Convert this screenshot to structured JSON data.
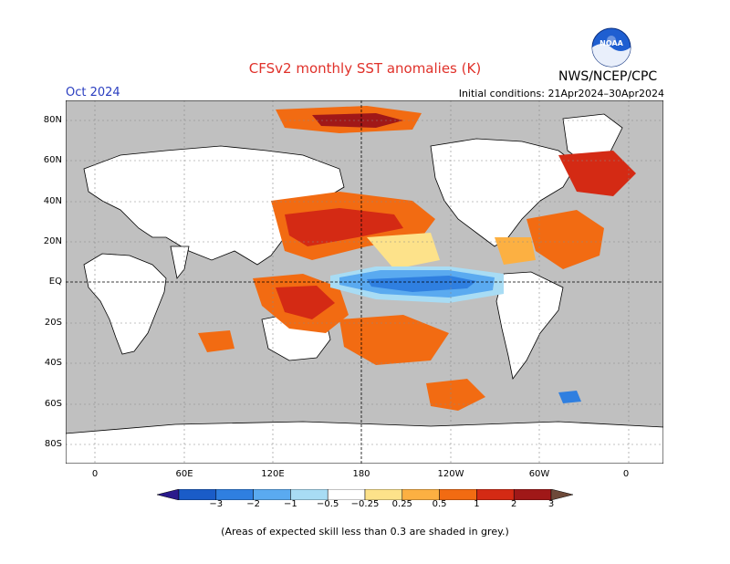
{
  "title": "CFSv2 monthly SST anomalies (K)",
  "agency": "NWS/NCEP/CPC",
  "logo_text": "NOAA",
  "month": "Oct 2024",
  "initial_conditions": "Initial conditions: 21Apr2024–30Apr2024",
  "lat_labels": [
    "80N",
    "60N",
    "40N",
    "20N",
    "EQ",
    "20S",
    "40S",
    "60S",
    "80S"
  ],
  "lon_labels": [
    "0",
    "60E",
    "120E",
    "180",
    "120W",
    "60W",
    "0"
  ],
  "colorbar": {
    "labels": [
      "−3",
      "−2",
      "−1",
      "−0.5",
      "−0.25",
      "0.25",
      "0.5",
      "1",
      "2",
      "3"
    ],
    "colors": [
      "#2a1a8c",
      "#1a5cc8",
      "#2f7fe0",
      "#5aaaf0",
      "#a8dcf4",
      "#ffffff",
      "#fde28a",
      "#fcb042",
      "#f26b12",
      "#d42a14",
      "#a01818",
      "#6e4a3a"
    ]
  },
  "note": "(Areas of expected skill less than 0.3 are shaded in grey.)",
  "colors": {
    "land": "#ffffff",
    "grey_skill": "#c0c0c0",
    "title": "#e0312a",
    "month": "#2a3ec0"
  }
}
